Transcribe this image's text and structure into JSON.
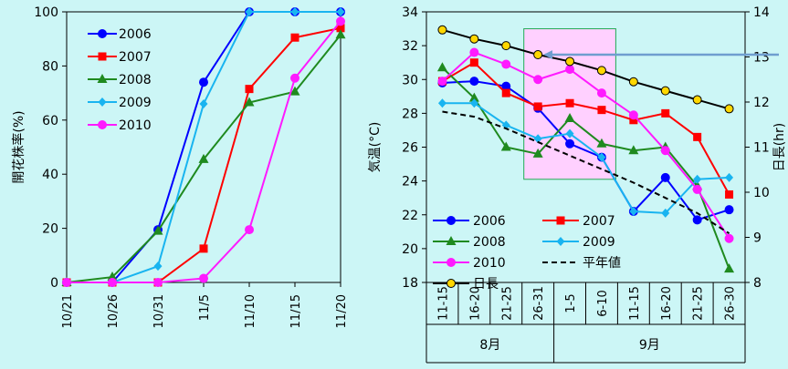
{
  "colors": {
    "background": "#ccf6f6",
    "y2006": "#0000ff",
    "y2007": "#ff0000",
    "y2008": "#1f8a1f",
    "y2009": "#19b4f0",
    "y2010": "#ff1aff",
    "normal": "#000000",
    "daylength_line": "#000000",
    "daylength_marker": "#ffd700",
    "highlight_fill": "#ffd0ff",
    "highlight_border": "#22aa55",
    "arrow": "#6f9dcf"
  },
  "chart_data": [
    {
      "type": "line",
      "title": "",
      "xlabel": "",
      "ylabel": "開花株率(%)",
      "ylim": [
        0,
        100
      ],
      "yticks": [
        0,
        20,
        40,
        60,
        80,
        100
      ],
      "categories": [
        "10/21",
        "10/26",
        "10/31",
        "11/5",
        "11/10",
        "11/15",
        "11/20"
      ],
      "legend_position": "top-left",
      "series": [
        {
          "name": "2006",
          "color_key": "y2006",
          "marker": "circle",
          "values": [
            0,
            0,
            19.5,
            74,
            100,
            100,
            100
          ]
        },
        {
          "name": "2007",
          "color_key": "y2007",
          "marker": "square",
          "values": [
            0,
            0,
            0,
            12.5,
            71.5,
            90.5,
            94
          ]
        },
        {
          "name": "2008",
          "color_key": "y2008",
          "marker": "triangle",
          "values": [
            0,
            2,
            19,
            45.5,
            66.5,
            70.5,
            91.5
          ]
        },
        {
          "name": "2009",
          "color_key": "y2009",
          "marker": "diamond",
          "values": [
            0,
            0,
            6,
            66,
            100,
            100,
            100
          ]
        },
        {
          "name": "2010",
          "color_key": "y2010",
          "marker": "circle",
          "values": [
            0,
            0,
            0,
            1.5,
            19.5,
            75.5,
            96.5
          ]
        }
      ]
    },
    {
      "type": "line",
      "title": "",
      "xlabel": "",
      "ylabel": "気温(°C)",
      "y2label": "日長(hr)",
      "ylim": [
        18,
        34
      ],
      "yticks": [
        18,
        20,
        22,
        24,
        26,
        28,
        30,
        32,
        34
      ],
      "y2lim": [
        8,
        14
      ],
      "y2ticks": [
        8,
        9,
        10,
        11,
        12,
        13,
        14
      ],
      "categories": [
        "11-15",
        "16-20",
        "21-25",
        "26-31",
        "1-5",
        "6-10",
        "11-15",
        "16-20",
        "21-25",
        "26-30"
      ],
      "groups": [
        {
          "label": "8月",
          "span": [
            0,
            3
          ]
        },
        {
          "label": "9月",
          "span": [
            4,
            9
          ]
        }
      ],
      "highlight_categories": [
        3,
        5
      ],
      "arrow_to_category": 3,
      "legend_position": "bottom-left",
      "series": [
        {
          "name": "2006",
          "axis": "left",
          "color_key": "y2006",
          "marker": "circle",
          "values": [
            29.8,
            29.9,
            29.6,
            28.3,
            26.2,
            25.4,
            22.2,
            24.2,
            21.7,
            22.3
          ]
        },
        {
          "name": "2007",
          "axis": "left",
          "color_key": "y2007",
          "marker": "square",
          "values": [
            29.9,
            31.0,
            29.2,
            28.4,
            28.6,
            28.2,
            27.6,
            28.0,
            26.6,
            23.2
          ]
        },
        {
          "name": "2008",
          "axis": "left",
          "color_key": "y2008",
          "marker": "triangle",
          "values": [
            30.7,
            28.9,
            26.0,
            25.6,
            27.7,
            26.2,
            25.8,
            26.0,
            23.7,
            18.8
          ]
        },
        {
          "name": "2009",
          "axis": "left",
          "color_key": "y2009",
          "marker": "diamond",
          "values": [
            28.6,
            28.6,
            27.3,
            26.5,
            26.8,
            25.4,
            22.2,
            22.1,
            24.1,
            24.2
          ]
        },
        {
          "name": "2010",
          "axis": "left",
          "color_key": "y2010",
          "marker": "circle",
          "values": [
            29.9,
            31.6,
            30.9,
            30.0,
            30.6,
            29.2,
            27.9,
            25.8,
            23.5,
            20.6
          ]
        },
        {
          "name": "平年値",
          "axis": "left",
          "color_key": "normal",
          "marker": "none",
          "dashed": true,
          "values": [
            28.1,
            27.8,
            27.1,
            26.3,
            25.5,
            24.7,
            23.9,
            23.0,
            22.1,
            20.9
          ]
        },
        {
          "name": "日長",
          "axis": "right",
          "color_key": "daylength_line",
          "marker": "circle",
          "marker_color_key": "daylength_marker",
          "values": [
            13.6,
            13.4,
            13.25,
            13.05,
            12.9,
            12.7,
            12.45,
            12.25,
            12.05,
            11.85
          ]
        }
      ]
    }
  ]
}
